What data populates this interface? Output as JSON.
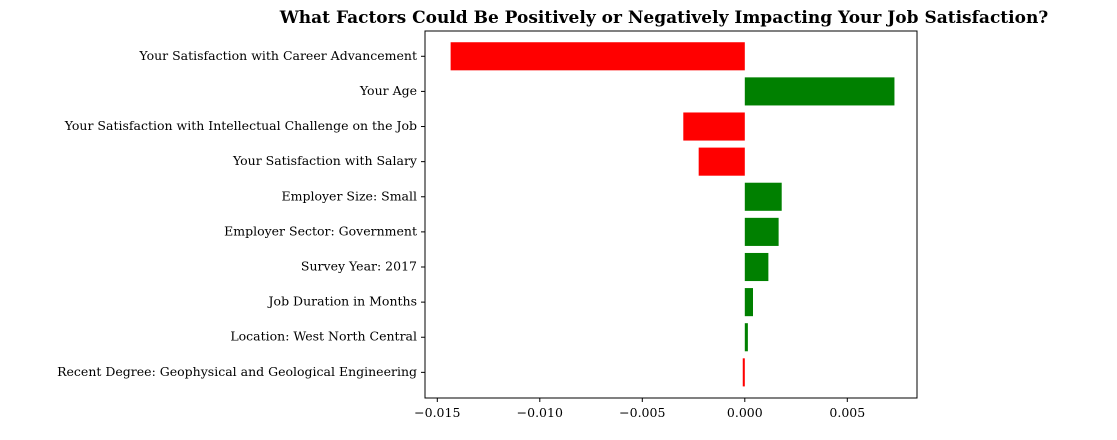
{
  "chart_data": {
    "type": "bar",
    "orientation": "horizontal",
    "title": "What Factors Could Be Positively or Negatively Impacting Your Job Satisfaction?",
    "xlabel": "",
    "ylabel": "",
    "xlim": [
      -0.0156,
      0.0084
    ],
    "x_ticks": [
      -0.015,
      -0.01,
      -0.005,
      0.0,
      0.005
    ],
    "x_tick_labels": [
      "−0.015",
      "−0.010",
      "−0.005",
      "0.000",
      "0.005"
    ],
    "grid": false,
    "colors": {
      "positive": "#008000",
      "negative": "#ff0000"
    },
    "categories": [
      "Your Satisfaction with Career Advancement",
      "Your Age",
      "Your Satisfaction with Intellectual Challenge on the Job",
      "Your Satisfaction with Salary",
      "Employer Size: Small",
      "Employer Sector: Government",
      "Survey Year: 2017",
      "Job Duration in Months",
      "Location: West North Central",
      "Recent Degree: Geophysical and Geological Engineering"
    ],
    "values": [
      -0.01435,
      0.0073,
      -0.003,
      -0.00225,
      0.0018,
      0.00165,
      0.00115,
      0.0004,
      0.00015,
      -0.0001
    ]
  }
}
